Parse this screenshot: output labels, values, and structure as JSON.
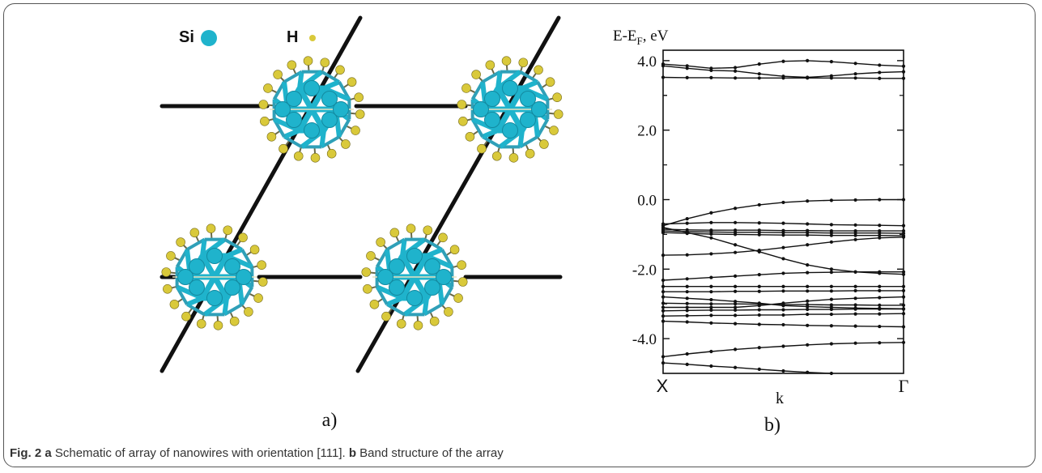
{
  "legend": {
    "si_label": "Si",
    "h_label": "H",
    "si_color": "#1fb3cc",
    "h_color": "#d9c93a"
  },
  "panel_a_label": "a)",
  "panel_b_label": "b)",
  "caption": {
    "fig_label": "Fig. 2",
    "a_label": "a",
    "a_text": "Schematic of array of nanowires with orientation [111].",
    "b_label": "b",
    "b_text": "Band structure of the array"
  },
  "chart_data": {
    "type": "line",
    "ylabel_main": "E-E",
    "ylabel_sub": "F",
    "ylabel_unit": ", eV",
    "xlabel": "k",
    "x_ticks": [
      "X",
      "Γ"
    ],
    "y_ticks": [
      "4.0",
      "2.0",
      "0.0",
      "-2.0",
      "-4.0"
    ],
    "y_tick_values": [
      4.0,
      2.0,
      0.0,
      -2.0,
      -4.0
    ],
    "ylim": [
      -5.0,
      4.3
    ],
    "k_points": [
      0,
      0.1,
      0.2,
      0.3,
      0.4,
      0.5,
      0.6,
      0.7,
      0.8,
      0.9,
      1.0
    ],
    "bands": [
      [
        3.9,
        3.85,
        3.78,
        3.8,
        3.9,
        3.98,
        4.0,
        3.97,
        3.92,
        3.87,
        3.84
      ],
      [
        3.85,
        3.78,
        3.72,
        3.7,
        3.62,
        3.55,
        3.52,
        3.56,
        3.62,
        3.66,
        3.68
      ],
      [
        3.52,
        3.51,
        3.51,
        3.5,
        3.5,
        3.5,
        3.5,
        3.5,
        3.5,
        3.49,
        3.49
      ],
      [
        -0.75,
        -0.55,
        -0.38,
        -0.25,
        -0.15,
        -0.08,
        -0.04,
        -0.02,
        -0.01,
        0.0,
        0.0
      ],
      [
        -0.7,
        -0.68,
        -0.66,
        -0.66,
        -0.67,
        -0.68,
        -0.7,
        -0.72,
        -0.73,
        -0.74,
        -0.75
      ],
      [
        -0.85,
        -0.87,
        -0.88,
        -0.88,
        -0.88,
        -0.89,
        -0.89,
        -0.9,
        -0.9,
        -0.9,
        -0.9
      ],
      [
        -0.9,
        -0.92,
        -0.93,
        -0.94,
        -0.94,
        -0.95,
        -0.95,
        -0.96,
        -0.96,
        -0.96,
        -0.97
      ],
      [
        -0.95,
        -0.97,
        -0.99,
        -1.0,
        -1.01,
        -1.02,
        -1.02,
        -1.03,
        -1.03,
        -1.03,
        -1.04
      ],
      [
        -0.8,
        -0.95,
        -1.1,
        -1.3,
        -1.5,
        -1.7,
        -1.88,
        -2.0,
        -2.08,
        -2.12,
        -2.15
      ],
      [
        -1.6,
        -1.59,
        -1.56,
        -1.52,
        -1.46,
        -1.38,
        -1.3,
        -1.22,
        -1.15,
        -1.1,
        -1.08
      ],
      [
        -2.32,
        -2.28,
        -2.24,
        -2.2,
        -2.16,
        -2.12,
        -2.1,
        -2.09,
        -2.08,
        -2.08,
        -2.08
      ],
      [
        -2.5,
        -2.5,
        -2.5,
        -2.5,
        -2.5,
        -2.5,
        -2.5,
        -2.5,
        -2.5,
        -2.5,
        -2.5
      ],
      [
        -2.65,
        -2.65,
        -2.65,
        -2.64,
        -2.64,
        -2.63,
        -2.63,
        -2.63,
        -2.62,
        -2.62,
        -2.62
      ],
      [
        -2.8,
        -2.84,
        -2.88,
        -2.93,
        -2.98,
        -3.05,
        -3.08,
        -3.1,
        -3.12,
        -3.13,
        -3.14
      ],
      [
        -2.98,
        -2.99,
        -3.0,
        -3.0,
        -3.01,
        -3.02,
        -3.02,
        -3.03,
        -3.03,
        -3.04,
        -3.04
      ],
      [
        -3.1,
        -3.1,
        -3.1,
        -3.1,
        -3.05,
        -2.98,
        -2.92,
        -2.87,
        -2.84,
        -2.82,
        -2.8
      ],
      [
        -3.2,
        -3.19,
        -3.18,
        -3.18,
        -3.17,
        -3.17,
        -3.16,
        -3.16,
        -3.15,
        -3.15,
        -3.15
      ],
      [
        -3.35,
        -3.34,
        -3.33,
        -3.33,
        -3.32,
        -3.32,
        -3.3,
        -3.3,
        -3.29,
        -3.29,
        -3.28
      ],
      [
        -3.5,
        -3.52,
        -3.55,
        -3.57,
        -3.59,
        -3.6,
        -3.62,
        -3.63,
        -3.64,
        -3.65,
        -3.66
      ],
      [
        -4.52,
        -4.44,
        -4.37,
        -4.31,
        -4.26,
        -4.22,
        -4.18,
        -4.15,
        -4.13,
        -4.12,
        -4.11
      ],
      [
        -4.7,
        -4.74,
        -4.79,
        -4.83,
        -4.88,
        -4.93,
        -4.97,
        -5.0,
        -5.05,
        -5.1,
        -5.15
      ]
    ]
  }
}
